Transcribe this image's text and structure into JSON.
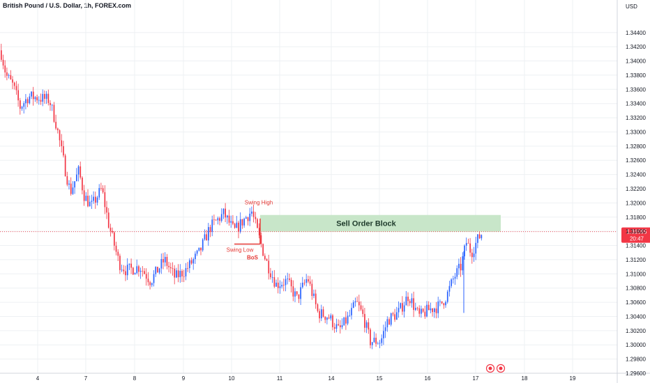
{
  "header": {
    "title": "British Pound / U.S. Dollar, 1h, FOREX.com"
  },
  "price_axis": {
    "currency": "USD"
  },
  "colors": {
    "up": "#2962ff",
    "down": "#f23645",
    "order_block": "#c8e6c9",
    "grid": "#eef0f3",
    "current_price_bg": "#f23645",
    "annotation": "#e53935"
  },
  "chart_data": {
    "type": "candlestick",
    "title": "British Pound / U.S. Dollar, 1h, FOREX.com",
    "xlabel": "",
    "ylabel": "",
    "ylim": [
      1.296,
      1.348
    ],
    "y_ticks": [
      "1.34400",
      "1.34200",
      "1.34000",
      "1.33800",
      "1.33600",
      "1.33400",
      "1.33200",
      "1.33000",
      "1.32800",
      "1.32600",
      "1.32400",
      "1.32200",
      "1.32000",
      "1.31800",
      "1.31600",
      "1.31400",
      "1.31200",
      "1.31000",
      "1.30800",
      "1.30600",
      "1.30400",
      "1.30200",
      "1.30000",
      "1.29800",
      "1.29600"
    ],
    "x_ticks": [
      "4",
      "7",
      "8",
      "9",
      "10",
      "11",
      "14",
      "15",
      "16",
      "17",
      "18",
      "19"
    ],
    "price_path": [
      [
        0,
        1.3415
      ],
      [
        8,
        1.338
      ],
      [
        18,
        1.3365
      ],
      [
        28,
        1.3335
      ],
      [
        40,
        1.335
      ],
      [
        55,
        1.3348
      ],
      [
        70,
        1.3345
      ],
      [
        80,
        1.331
      ],
      [
        92,
        1.325
      ],
      [
        100,
        1.3215
      ],
      [
        112,
        1.3245
      ],
      [
        120,
        1.321
      ],
      [
        130,
        1.3195
      ],
      [
        145,
        1.322
      ],
      [
        155,
        1.317
      ],
      [
        170,
        1.3115
      ],
      [
        180,
        1.3105
      ],
      [
        200,
        1.311
      ],
      [
        215,
        1.309
      ],
      [
        235,
        1.312
      ],
      [
        250,
        1.3095
      ],
      [
        265,
        1.3105
      ],
      [
        285,
        1.313
      ],
      [
        300,
        1.3165
      ],
      [
        320,
        1.3185
      ],
      [
        335,
        1.316
      ],
      [
        352,
        1.318
      ],
      [
        360,
        1.3188
      ],
      [
        368,
        1.316
      ],
      [
        380,
        1.312
      ],
      [
        395,
        1.3085
      ],
      [
        410,
        1.309
      ],
      [
        425,
        1.3065
      ],
      [
        440,
        1.3095
      ],
      [
        455,
        1.3045
      ],
      [
        470,
        1.304
      ],
      [
        485,
        1.302
      ],
      [
        500,
        1.304
      ],
      [
        510,
        1.306
      ],
      [
        520,
        1.304
      ],
      [
        530,
        1.3005
      ],
      [
        545,
        1.3005
      ],
      [
        555,
        1.3035
      ],
      [
        570,
        1.3045
      ],
      [
        585,
        1.307
      ],
      [
        600,
        1.304
      ],
      [
        615,
        1.305
      ],
      [
        630,
        1.3055
      ],
      [
        640,
        1.307
      ],
      [
        650,
        1.3095
      ],
      [
        660,
        1.311
      ],
      [
        668,
        1.3145
      ],
      [
        675,
        1.313
      ],
      [
        685,
        1.315
      ],
      [
        692,
        1.316
      ]
    ],
    "annotations": [
      {
        "text": "Swing High",
        "price": 1.3194
      },
      {
        "text": "Swing Low",
        "price": 1.3142
      },
      {
        "text": "BoS",
        "price": 1.3142
      },
      {
        "text": "Sell Order Block",
        "low": 1.31595,
        "high": 1.3183
      }
    ],
    "current_price": {
      "value": "1.31595",
      "countdown": "20:47"
    },
    "grid": true
  }
}
